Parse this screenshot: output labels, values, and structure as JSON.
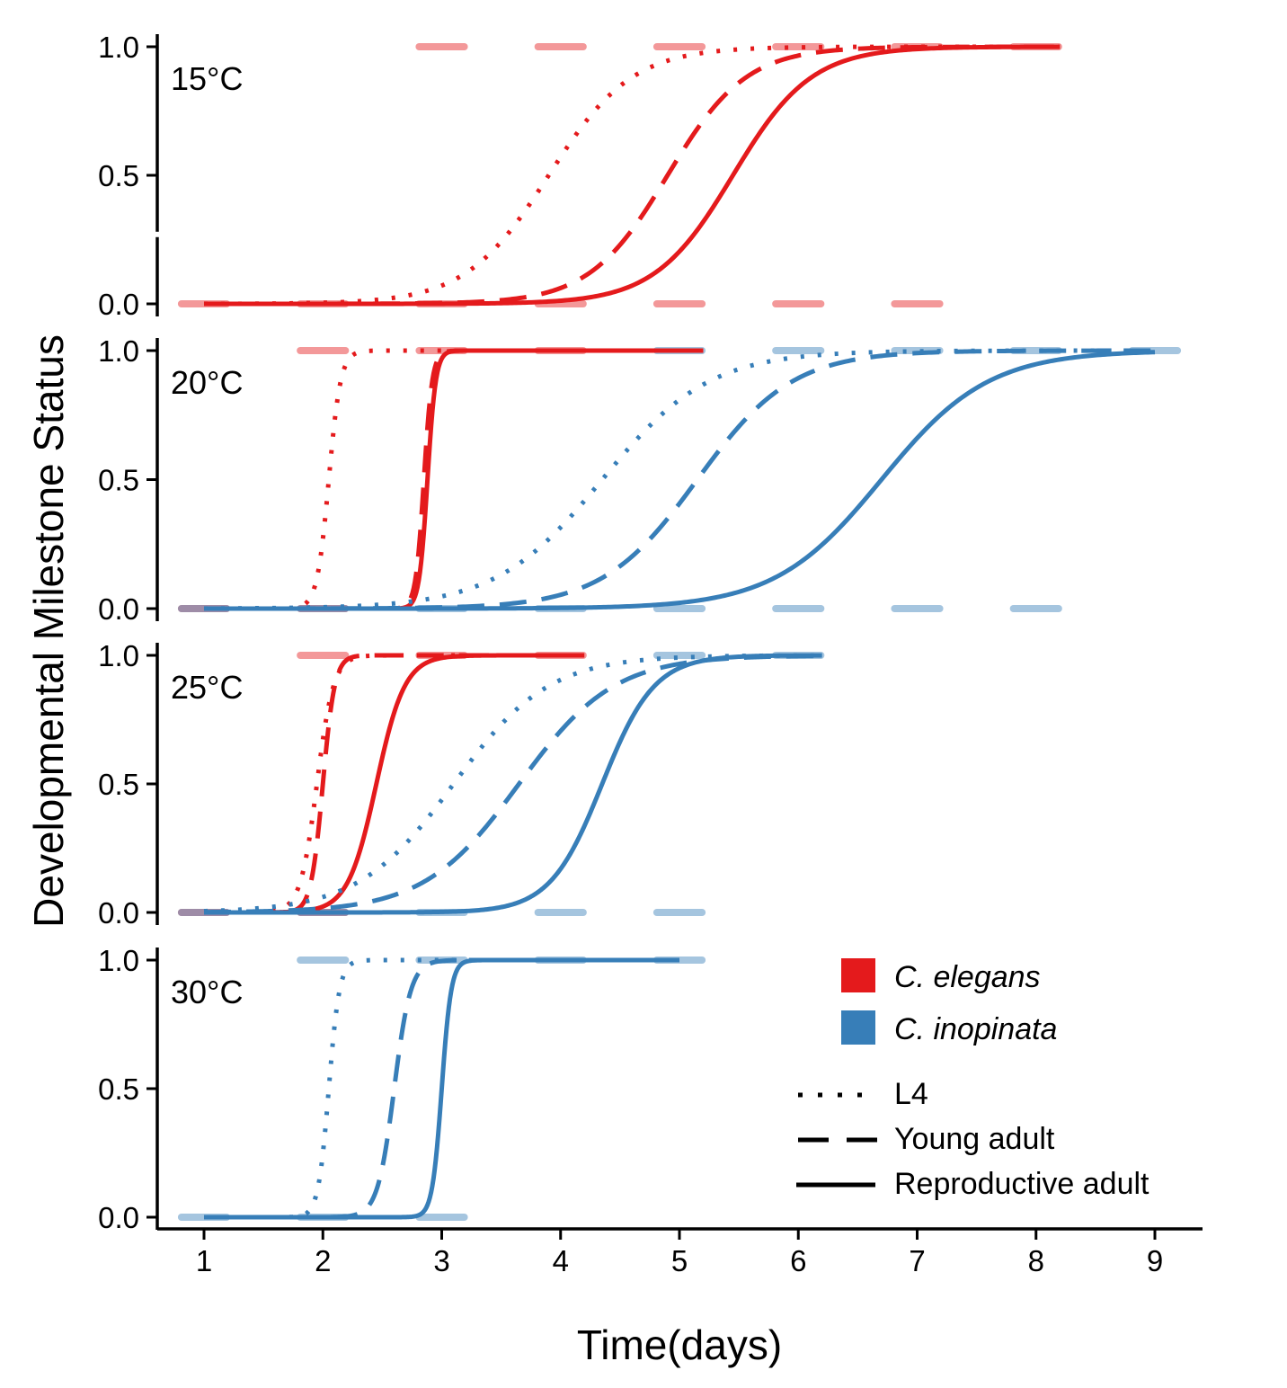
{
  "chart_data": {
    "type": "line",
    "ylabel": "Developmental Milestone Status",
    "xlabel": "Time(days)",
    "xlim": [
      1,
      9
    ],
    "ylim": [
      0,
      1
    ],
    "x_ticks": [
      "1",
      "2",
      "3",
      "4",
      "5",
      "6",
      "7",
      "8",
      "9"
    ],
    "y_ticks": [
      "0.0",
      "0.5",
      "1.0"
    ],
    "grid": false,
    "legend_position": "bottom-right",
    "species_colors": {
      "C. elegans": "#e41a1c",
      "C. inopinata": "#377eb8"
    },
    "milestones": [
      "L4",
      "Young adult",
      "Reproductive adult"
    ],
    "legend": {
      "species": [
        "C. elegans",
        "C. inopinata"
      ],
      "milestones": [
        "L4",
        "Young adult",
        "Reproductive adult"
      ]
    },
    "panels": [
      {
        "label": "15°C",
        "series": [
          {
            "species": "C. elegans",
            "milestone": "L4",
            "midpoint": 3.9,
            "scale": 0.35,
            "x_start": 1,
            "x_end": 8.2
          },
          {
            "species": "C. elegans",
            "milestone": "Young adult",
            "midpoint": 4.9,
            "scale": 0.33,
            "x_start": 1,
            "x_end": 8.2
          },
          {
            "species": "C. elegans",
            "milestone": "Reproductive adult",
            "midpoint": 5.45,
            "scale": 0.33,
            "x_start": 1,
            "x_end": 8.2
          }
        ]
      },
      {
        "label": "20°C",
        "series": [
          {
            "species": "C. elegans",
            "milestone": "L4",
            "midpoint": 2.05,
            "scale": 0.05,
            "x_start": 1,
            "x_end": 5.2
          },
          {
            "species": "C. elegans",
            "milestone": "Young adult",
            "midpoint": 2.85,
            "scale": 0.035,
            "x_start": 1,
            "x_end": 5.2
          },
          {
            "species": "C. elegans",
            "milestone": "Reproductive adult",
            "midpoint": 2.88,
            "scale": 0.035,
            "x_start": 1,
            "x_end": 5.2
          },
          {
            "species": "C. inopinata",
            "milestone": "L4",
            "midpoint": 4.35,
            "scale": 0.45,
            "x_start": 1,
            "x_end": 9.0
          },
          {
            "species": "C. inopinata",
            "milestone": "Young adult",
            "midpoint": 5.15,
            "scale": 0.4,
            "x_start": 1,
            "x_end": 9.0
          },
          {
            "species": "C. inopinata",
            "milestone": "Reproductive adult",
            "midpoint": 6.7,
            "scale": 0.45,
            "x_start": 1,
            "x_end": 9.0
          }
        ]
      },
      {
        "label": "25°C",
        "series": [
          {
            "species": "C. elegans",
            "milestone": "L4",
            "midpoint": 1.95,
            "scale": 0.07,
            "x_start": 1,
            "x_end": 4.2
          },
          {
            "species": "C. elegans",
            "milestone": "Young adult",
            "midpoint": 2.0,
            "scale": 0.05,
            "x_start": 1,
            "x_end": 4.2
          },
          {
            "species": "C. elegans",
            "milestone": "Reproductive adult",
            "midpoint": 2.45,
            "scale": 0.12,
            "x_start": 1,
            "x_end": 4.2
          },
          {
            "species": "C. inopinata",
            "milestone": "L4",
            "midpoint": 3.1,
            "scale": 0.4,
            "x_start": 1,
            "x_end": 6.2
          },
          {
            "species": "C. inopinata",
            "milestone": "Young adult",
            "midpoint": 3.65,
            "scale": 0.4,
            "x_start": 1,
            "x_end": 6.2
          },
          {
            "species": "C. inopinata",
            "milestone": "Reproductive adult",
            "midpoint": 4.35,
            "scale": 0.22,
            "x_start": 1,
            "x_end": 6.2
          }
        ]
      },
      {
        "label": "30°C",
        "series": [
          {
            "species": "C. inopinata",
            "milestone": "L4",
            "midpoint": 2.05,
            "scale": 0.045,
            "x_start": 1,
            "x_end": 5.0
          },
          {
            "species": "C. inopinata",
            "milestone": "Young adult",
            "midpoint": 2.6,
            "scale": 0.07,
            "x_start": 1,
            "x_end": 5.0
          },
          {
            "species": "C. inopinata",
            "milestone": "Reproductive adult",
            "midpoint": 3.0,
            "scale": 0.04,
            "x_start": 1,
            "x_end": 5.0
          }
        ]
      }
    ],
    "observations": [
      {
        "panel": 0,
        "species": "C. elegans",
        "y": 1,
        "x": [
          3.0,
          4.0,
          5.0,
          6.0,
          7.0,
          8.0
        ]
      },
      {
        "panel": 0,
        "species": "C. elegans",
        "y": 0,
        "x": [
          1.0,
          2.0,
          3.0,
          4.0,
          5.0,
          6.0,
          7.0
        ]
      },
      {
        "panel": 1,
        "species": "C. elegans",
        "y": 1,
        "x": [
          2.0,
          3.0,
          4.0
        ]
      },
      {
        "panel": 1,
        "species": "C. elegans",
        "y": 0,
        "x": [
          1.0,
          2.0
        ]
      },
      {
        "panel": 1,
        "species": "C. inopinata",
        "y": 1,
        "x": [
          5.0,
          6.0,
          7.0,
          8.0,
          9.0
        ]
      },
      {
        "panel": 1,
        "species": "C. inopinata",
        "y": 0,
        "x": [
          1.0,
          2.0,
          3.0,
          4.0,
          5.0,
          6.0,
          7.0,
          8.0
        ]
      },
      {
        "panel": 2,
        "species": "C. elegans",
        "y": 1,
        "x": [
          2.0,
          3.0,
          4.0
        ]
      },
      {
        "panel": 2,
        "species": "C. elegans",
        "y": 0,
        "x": [
          1.0,
          2.0
        ]
      },
      {
        "panel": 2,
        "species": "C. inopinata",
        "y": 1,
        "x": [
          5.0,
          6.0
        ]
      },
      {
        "panel": 2,
        "species": "C. inopinata",
        "y": 0,
        "x": [
          1.0,
          2.0,
          3.0,
          4.0,
          5.0
        ]
      },
      {
        "panel": 3,
        "species": "C. inopinata",
        "y": 1,
        "x": [
          2.0,
          3.0,
          4.0,
          5.0
        ]
      },
      {
        "panel": 3,
        "species": "C. inopinata",
        "y": 0,
        "x": [
          1.0,
          2.0,
          3.0
        ]
      }
    ]
  }
}
